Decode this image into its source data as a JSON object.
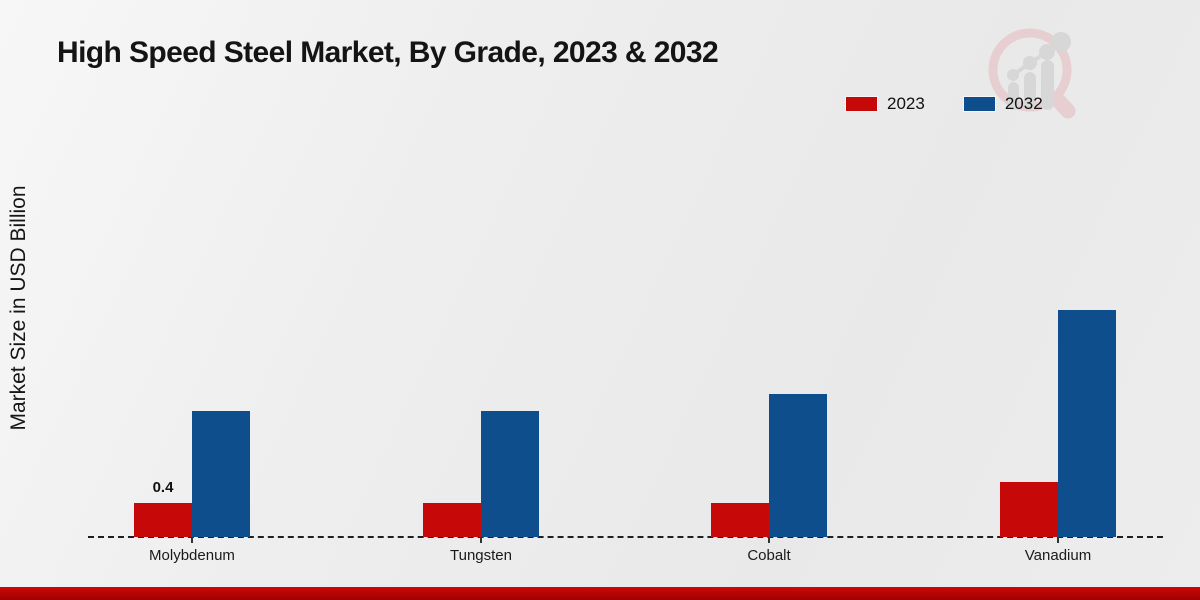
{
  "chart_data": {
    "type": "bar",
    "title": "High Speed Steel Market, By Grade, 2023 & 2032",
    "ylabel": "Market Size in USD Billion",
    "categories": [
      "Molybdenum",
      "Tungsten",
      "Cobalt",
      "Vanadium"
    ],
    "series": [
      {
        "name": "2023",
        "color": "#c60808",
        "values": [
          0.4,
          0.4,
          0.4,
          0.65
        ]
      },
      {
        "name": "2032",
        "color": "#0f4e8c",
        "values": [
          1.5,
          1.5,
          1.7,
          2.7
        ]
      }
    ],
    "annotations": [
      {
        "category": "Molybdenum",
        "series": "2023",
        "text": "0.4"
      }
    ],
    "ylim": [
      0,
      3
    ],
    "grid": false,
    "legend_position": "top-right",
    "axis_line_style": "dashed"
  },
  "colors": {
    "series_2023": "#c60808",
    "series_2032": "#0f4e8c",
    "footer_accent": "#b00404",
    "background": "#ededed",
    "axis": "#1f1f1f"
  },
  "watermark": {
    "icon": "magnifier-analytics-logo"
  }
}
